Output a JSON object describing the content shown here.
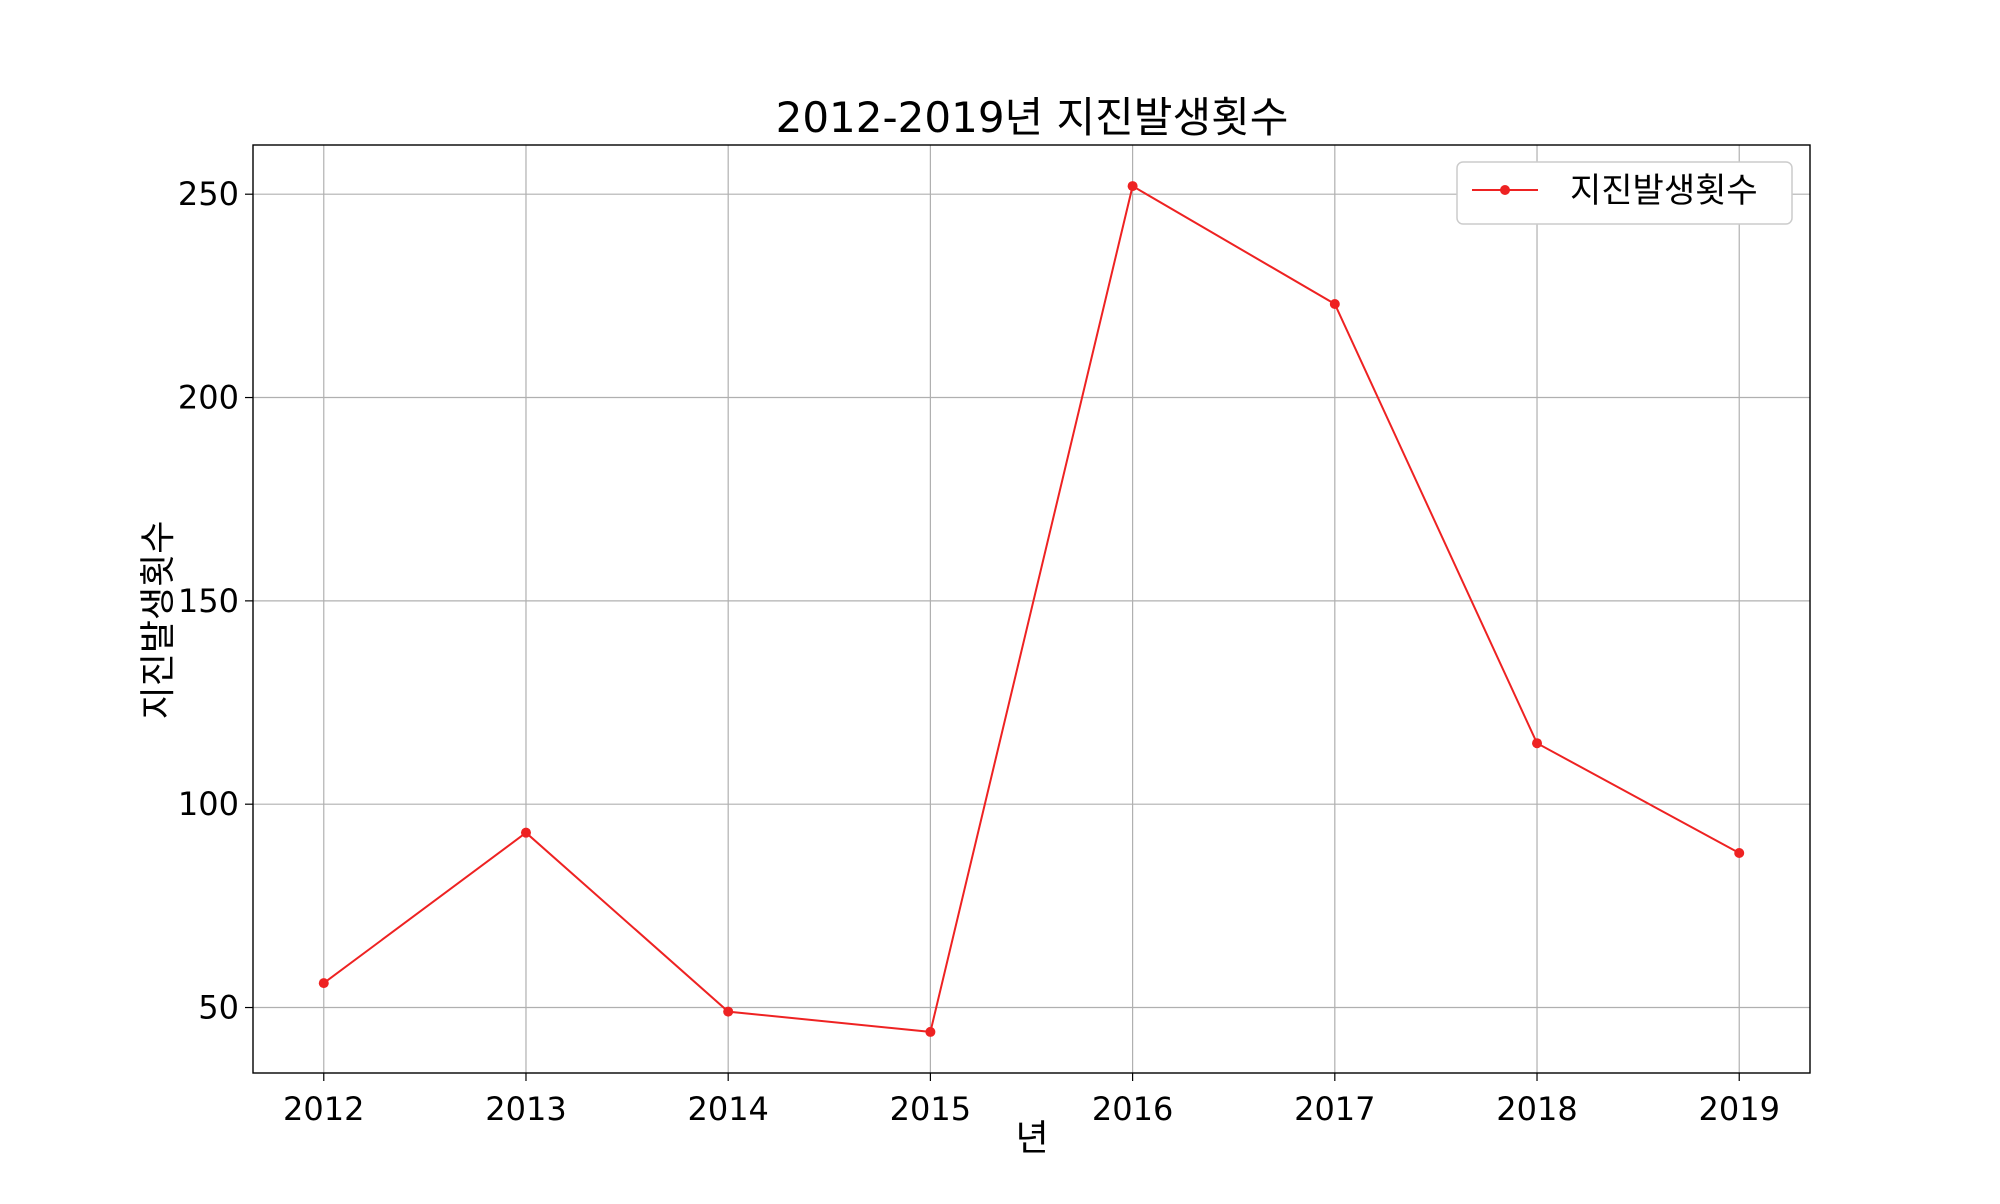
{
  "chart_data": {
    "type": "line",
    "title": "2012-2019년 지진발생횟수",
    "xlabel": "년",
    "ylabel": "지진발생횟수",
    "x": [
      2012,
      2013,
      2014,
      2015,
      2016,
      2017,
      2018,
      2019
    ],
    "x_tick_labels": [
      "2012",
      "2013",
      "2014",
      "2015",
      "2016",
      "2017",
      "2018",
      "2019"
    ],
    "series": [
      {
        "name": "지진발생횟수",
        "values": [
          56,
          93,
          49,
          44,
          252,
          223,
          115,
          88
        ],
        "color": "#ee2222",
        "marker": "circle"
      }
    ],
    "y_ticks": [
      50,
      100,
      150,
      200,
      250
    ],
    "y_tick_labels": [
      "50",
      "100",
      "150",
      "200",
      "250"
    ],
    "xlim": [
      2011.65,
      2019.35
    ],
    "ylim": [
      33.9,
      262.1
    ],
    "grid": true,
    "legend_position": "upper right"
  }
}
